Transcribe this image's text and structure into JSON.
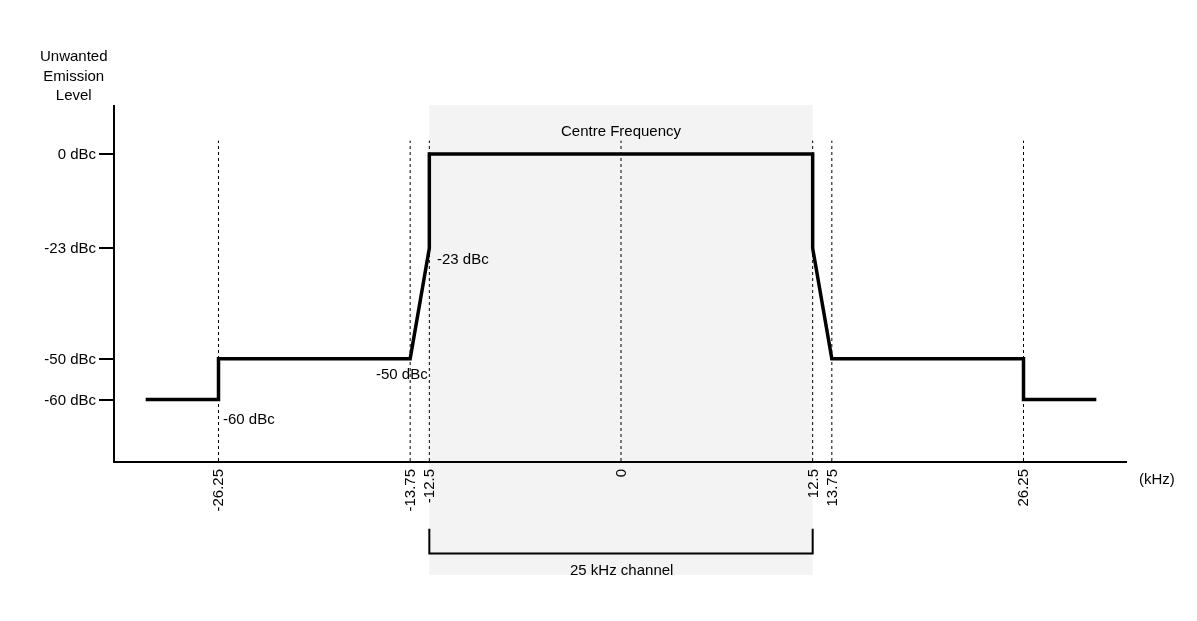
{
  "chart_data": {
    "type": "line",
    "ylabel": "Unwanted Emission Level",
    "xlabel": "(kHz)",
    "series": [
      {
        "color": "#000000",
        "line_style": "solid",
        "x": [
          -31,
          -26.25,
          -26.25,
          -13.75,
          -12.5,
          -12.5,
          12.5,
          12.5,
          13.75,
          26.25,
          26.25,
          31
        ],
        "values": [
          -60,
          -60,
          -50,
          -50,
          -23,
          0,
          0,
          -23,
          -50,
          -50,
          -60,
          -60
        ]
      }
    ],
    "xlim": [
      -33,
      33
    ],
    "xticks": [
      -26.25,
      -13.75,
      -12.5,
      0,
      12.5,
      13.75,
      26.25
    ],
    "ylim": [
      -75,
      12
    ],
    "yticks": [
      {
        "value": 0,
        "label": "0 dBc"
      },
      {
        "value": -23,
        "label": "-23 dBc"
      },
      {
        "value": -50,
        "label": "-50 dBc"
      },
      {
        "value": -60,
        "label": "-60 dBc"
      }
    ],
    "ref_lines": [
      {
        "axis": "x",
        "value": -26.25,
        "line_style": "dotted"
      },
      {
        "axis": "x",
        "value": -13.75,
        "line_style": "dotted"
      },
      {
        "axis": "x",
        "value": -12.5,
        "line_style": "dotted"
      },
      {
        "axis": "x",
        "value": 0,
        "label": "Centre Frequency",
        "line_style": "dotted"
      },
      {
        "axis": "x",
        "value": 12.5,
        "line_style": "dotted"
      },
      {
        "axis": "x",
        "value": 13.75,
        "line_style": "dotted"
      },
      {
        "axis": "x",
        "value": 26.25,
        "line_style": "dotted"
      }
    ],
    "bands": [
      {
        "axis": "x",
        "from": -12.5,
        "to": 12.5,
        "label": "25 kHz channel"
      }
    ],
    "annotations": [
      {
        "text": "-23 dBc",
        "x": -12.5,
        "y": -23
      },
      {
        "text": "-50 dBc",
        "x": -13.75,
        "y": -50
      },
      {
        "text": "-60 dBc",
        "x": -26.25,
        "y": -60
      }
    ]
  }
}
